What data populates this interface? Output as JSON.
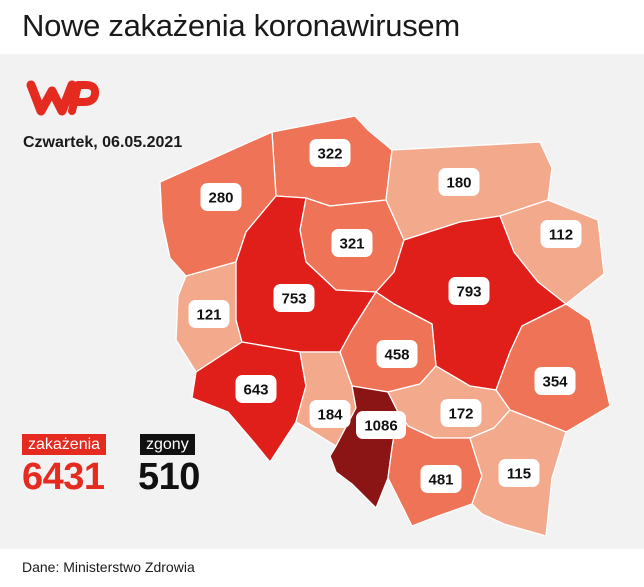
{
  "title": "Nowe zakażenia koronawirusem",
  "date": "Czwartek, 06.05.2021",
  "logo": {
    "name": "wp-logo",
    "color": "#e52a20"
  },
  "source": "Dane: Ministerstwo Zdrowia",
  "totals": {
    "cases_label": "zakażenia",
    "cases_value": "6431",
    "deaths_label": "zgony",
    "deaths_value": "510"
  },
  "colors": {
    "accent": "#e52a20",
    "level_low": "#f2a98c",
    "level_mid": "#ef7357",
    "level_high": "#e01f1a",
    "level_max": "#8b1414"
  },
  "regions": [
    {
      "value": "322",
      "level": "mid"
    },
    {
      "value": "280",
      "level": "mid"
    },
    {
      "value": "180",
      "level": "low"
    },
    {
      "value": "321",
      "level": "mid"
    },
    {
      "value": "112",
      "level": "low"
    },
    {
      "value": "121",
      "level": "low"
    },
    {
      "value": "753",
      "level": "high"
    },
    {
      "value": "793",
      "level": "high"
    },
    {
      "value": "458",
      "level": "mid"
    },
    {
      "value": "643",
      "level": "high"
    },
    {
      "value": "354",
      "level": "mid"
    },
    {
      "value": "184",
      "level": "low"
    },
    {
      "value": "1086",
      "level": "max"
    },
    {
      "value": "172",
      "level": "low"
    },
    {
      "value": "481",
      "level": "mid"
    },
    {
      "value": "115",
      "level": "low"
    }
  ]
}
